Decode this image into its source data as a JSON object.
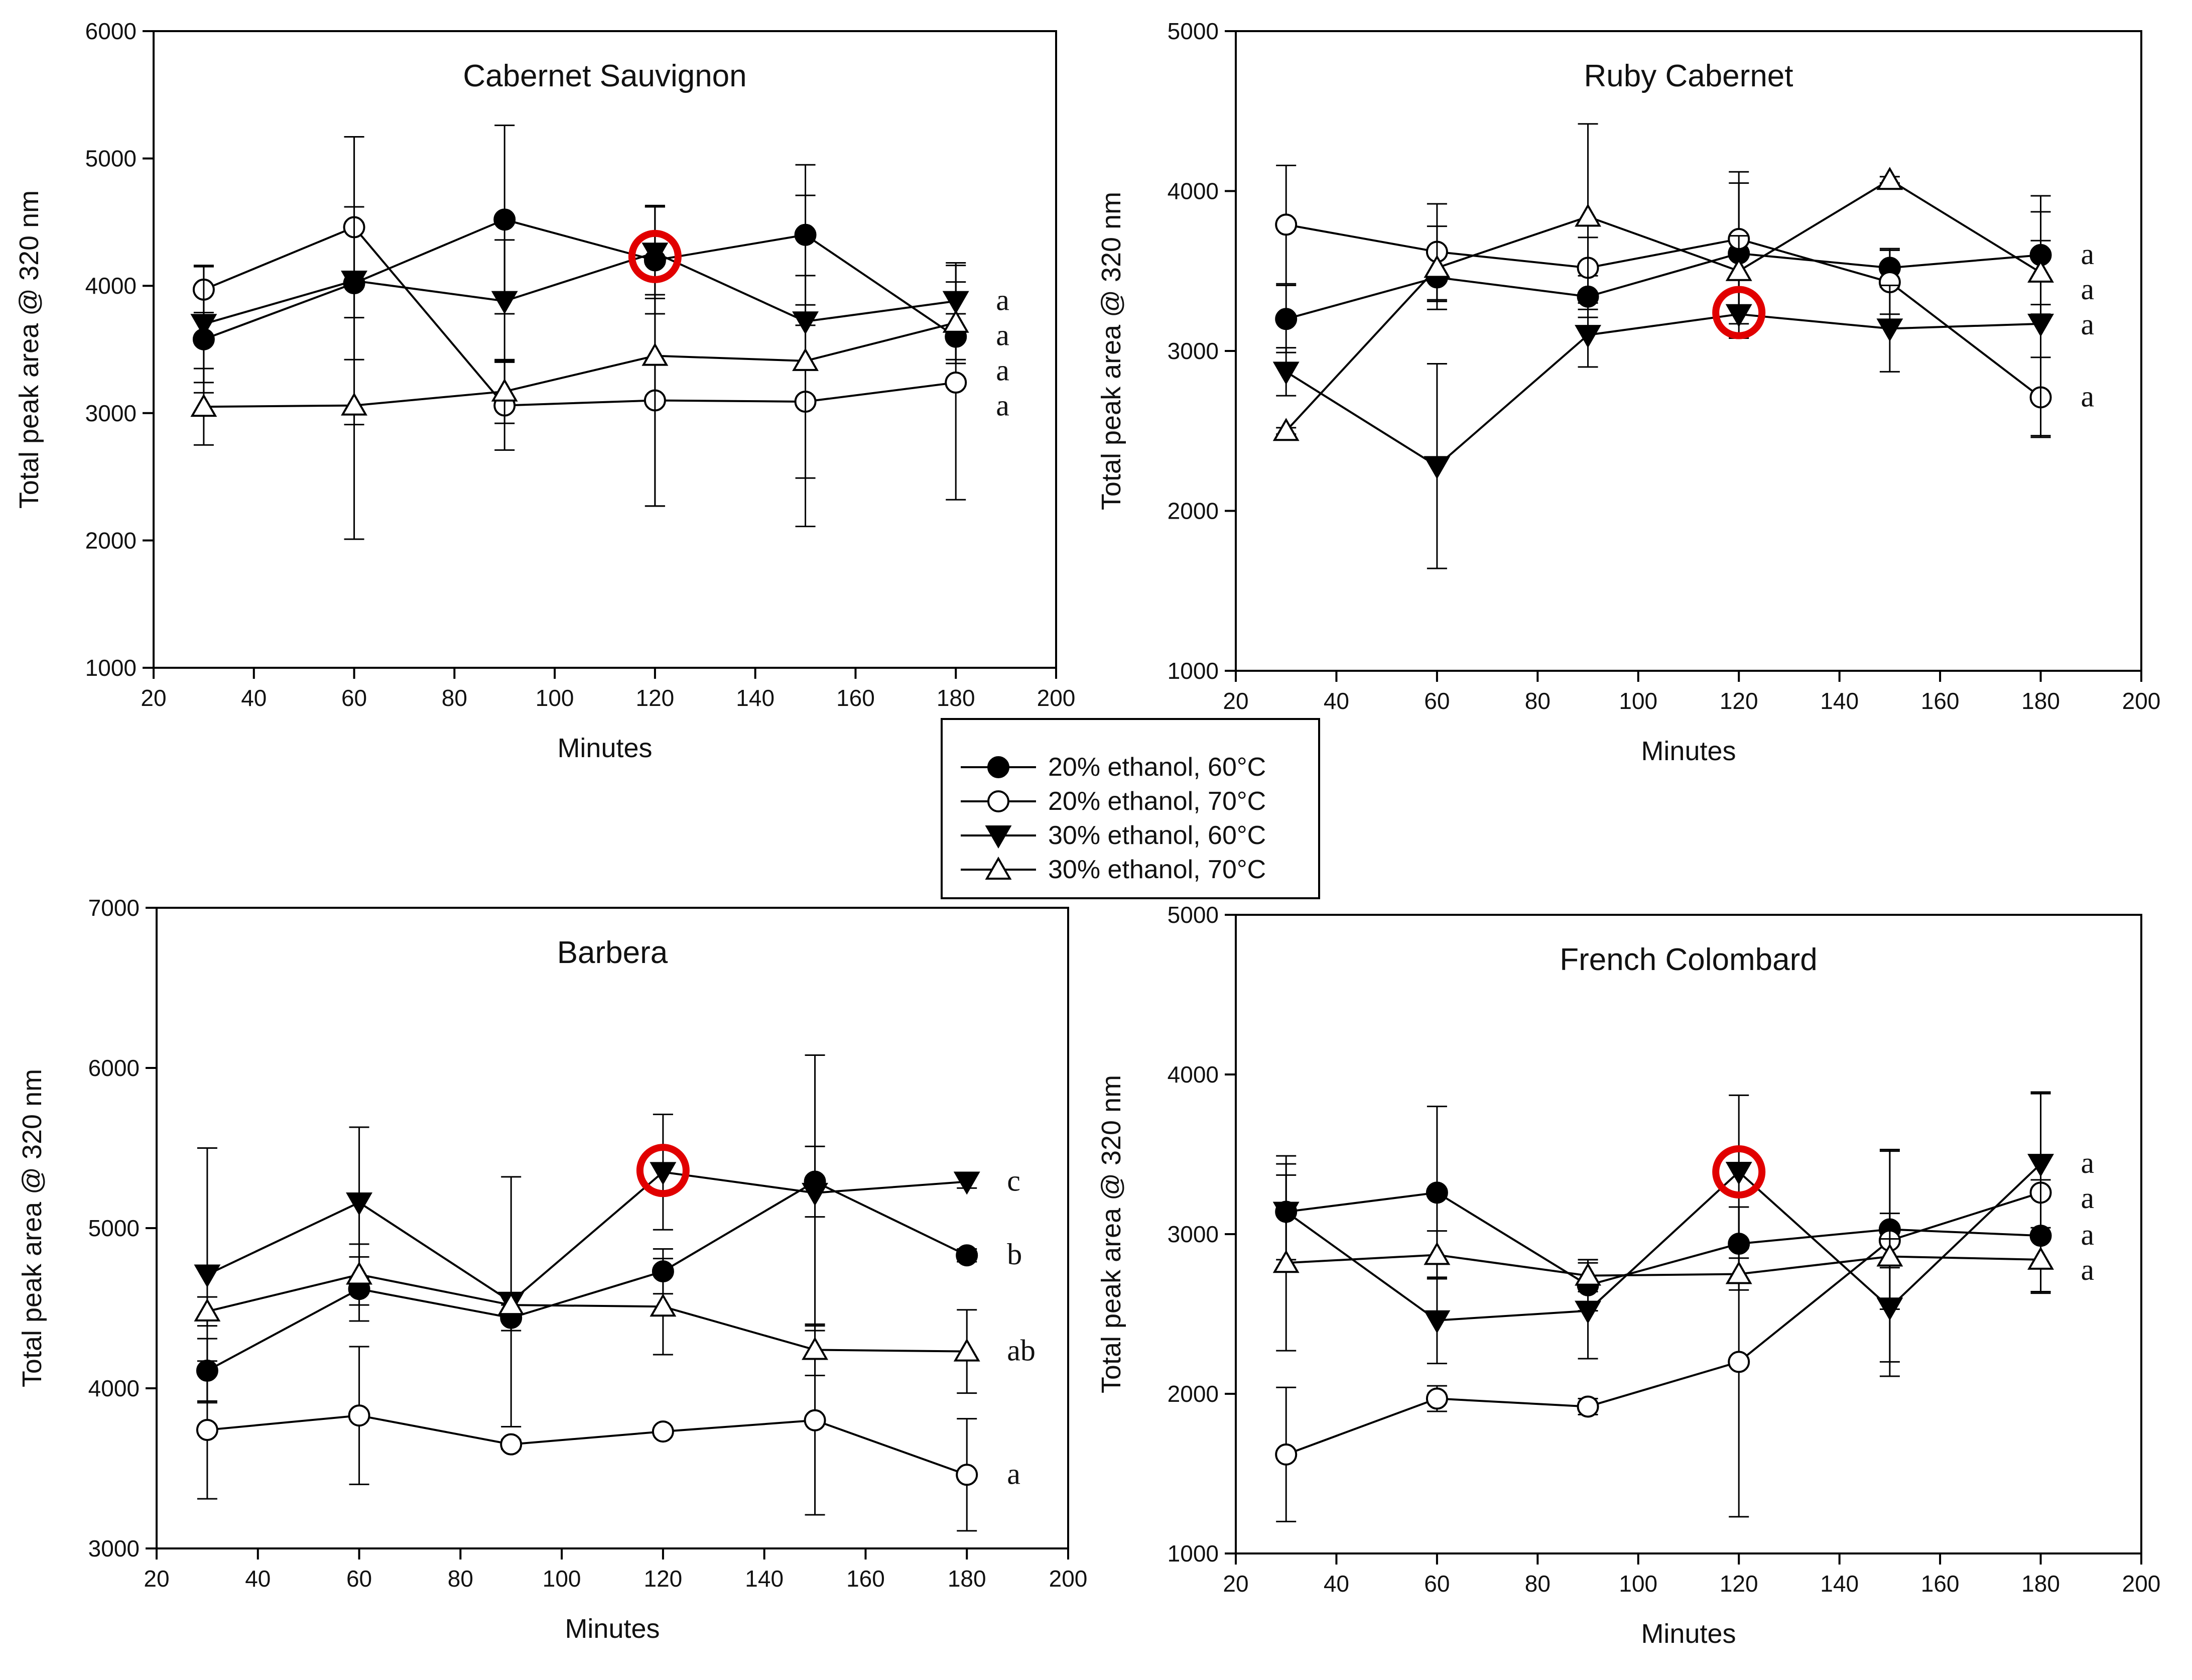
{
  "legend": [
    {
      "label": "20% ethanol, 60°C",
      "marker": "filled-circle"
    },
    {
      "label": "20% ethanol, 70°C",
      "marker": "open-circle"
    },
    {
      "label": "30% ethanol, 60°C",
      "marker": "filled-triangle-down"
    },
    {
      "label": "30% ethanol, 70°C",
      "marker": "open-triangle-up"
    }
  ],
  "chart_data": [
    {
      "type": "line",
      "title": "Cabernet Sauvignon",
      "xlabel": "Minutes",
      "ylabel": "Total peak area @ 320 nm",
      "xlim": [
        20,
        200
      ],
      "ylim": [
        1000,
        6000
      ],
      "xticks": [
        20,
        40,
        60,
        80,
        100,
        120,
        140,
        160,
        180,
        200
      ],
      "yticks": [
        1000,
        2000,
        3000,
        4000,
        5000,
        6000
      ],
      "x": [
        30,
        60,
        90,
        120,
        150,
        180
      ],
      "series": [
        {
          "name": "20% ethanol, 60°C",
          "values": [
            3580,
            4020,
            4520,
            4200,
            4400,
            3600
          ],
          "errors": [
            420,
            600,
            740,
            420,
            550,
            180
          ]
        },
        {
          "name": "20% ethanol, 70°C",
          "values": [
            3970,
            4460,
            3060,
            3100,
            3090,
            3240
          ],
          "errors": [
            180,
            710,
            350,
            830,
            600,
            920
          ]
        },
        {
          "name": "30% ethanol, 60°C",
          "values": [
            3700,
            4040,
            3880,
            4260,
            3720,
            3880
          ],
          "errors": [
            460,
            1130,
            480,
            360,
            360,
            300
          ]
        },
        {
          "name": "30% ethanol, 70°C",
          "values": [
            3050,
            3060,
            3170,
            3450,
            3410,
            3710
          ],
          "errors": [
            300,
            1050,
            250,
            1180,
            1300,
            320
          ]
        }
      ],
      "significance_labels": [
        "a",
        "a",
        "a",
        "a"
      ],
      "highlight": {
        "x": 120,
        "y": 4230
      }
    },
    {
      "type": "line",
      "title": "Ruby Cabernet",
      "xlabel": "Minutes",
      "ylabel": "Total peak area @ 320 nm",
      "xlim": [
        20,
        200
      ],
      "ylim": [
        1000,
        5000
      ],
      "xticks": [
        20,
        40,
        60,
        80,
        100,
        120,
        140,
        160,
        180,
        200
      ],
      "yticks": [
        1000,
        2000,
        3000,
        4000,
        5000
      ],
      "x": [
        30,
        60,
        90,
        120,
        150,
        180
      ],
      "series": [
        {
          "name": "20% ethanol, 60°C",
          "values": [
            3200,
            3460,
            3340,
            3610,
            3520,
            3600
          ],
          "errors": [
            210,
            150,
            130,
            440,
            120,
            370
          ]
        },
        {
          "name": "20% ethanol, 70°C",
          "values": [
            3790,
            3620,
            3520,
            3700,
            3430,
            2710
          ],
          "errors": [
            370,
            300,
            190,
            420,
            200,
            250
          ]
        },
        {
          "name": "30% ethanol, 60°C",
          "values": [
            2870,
            2280,
            3100,
            3230,
            3140,
            3170
          ],
          "errors": [
            150,
            640,
            200,
            150,
            270,
            700
          ]
        },
        {
          "name": "30% ethanol, 70°C",
          "values": [
            2500,
            3520,
            3840,
            3500,
            4070,
            3490
          ],
          "errors": [
            20,
            260,
            580,
            220,
            20,
            200
          ]
        }
      ],
      "significance_labels": [
        "a",
        "a",
        "a",
        "a"
      ],
      "highlight": {
        "x": 120,
        "y": 3240
      }
    },
    {
      "type": "line",
      "title": "Barbera",
      "xlabel": "Minutes",
      "ylabel": "Total peak area @ 320 nm",
      "xlim": [
        20,
        200
      ],
      "ylim": [
        3000,
        7000
      ],
      "xticks": [
        20,
        40,
        60,
        80,
        100,
        120,
        140,
        160,
        180,
        200
      ],
      "yticks": [
        3000,
        4000,
        5000,
        6000,
        7000
      ],
      "x": [
        30,
        60,
        90,
        120,
        150,
        180
      ],
      "series": [
        {
          "name": "20% ethanol, 60°C",
          "values": [
            4110,
            4620,
            4440,
            4730,
            5290,
            4830
          ],
          "errors": [
            200,
            200,
            80,
            140,
            220,
            40
          ]
        },
        {
          "name": "20% ethanol, 70°C",
          "values": [
            3740,
            3830,
            3650,
            3730,
            3800,
            3460
          ],
          "errors": [
            430,
            430,
            30,
            20,
            590,
            350
          ]
        },
        {
          "name": "30% ethanol, 60°C",
          "values": [
            4710,
            5160,
            4540,
            5350,
            5220,
            5290
          ],
          "errors": [
            790,
            470,
            780,
            360,
            860,
            40
          ]
        },
        {
          "name": "30% ethanol, 70°C",
          "values": [
            4480,
            4710,
            4520,
            4510,
            4240,
            4230
          ],
          "errors": [
            90,
            190,
            60,
            300,
            160,
            260
          ]
        }
      ],
      "significance_labels": [
        "c",
        "b",
        "ab",
        "a"
      ],
      "highlight": {
        "x": 120,
        "y": 5360
      }
    },
    {
      "type": "line",
      "title": "French Colombard",
      "xlabel": "Minutes",
      "ylabel": "Total peak area @ 320 nm",
      "xlim": [
        20,
        200
      ],
      "ylim": [
        1000,
        5000
      ],
      "xticks": [
        20,
        40,
        60,
        80,
        100,
        120,
        140,
        160,
        180,
        200
      ],
      "yticks": [
        1000,
        2000,
        3000,
        4000,
        5000
      ],
      "x": [
        30,
        60,
        90,
        120,
        150,
        180
      ],
      "series": [
        {
          "name": "20% ethanol, 60°C",
          "values": [
            3140,
            3260,
            2680,
            2940,
            3030,
            2990
          ],
          "errors": [
            300,
            540,
            160,
            230,
            500,
            350
          ]
        },
        {
          "name": "20% ethanol, 70°C",
          "values": [
            1620,
            1970,
            1920,
            2200,
            2960,
            3260
          ],
          "errors": [
            420,
            80,
            50,
            970,
            170,
            630
          ]
        },
        {
          "name": "30% ethanol, 60°C",
          "values": [
            3140,
            2460,
            2520,
            3390,
            2540,
            3440
          ],
          "errors": [
            350,
            270,
            300,
            480,
            430,
            440
          ]
        },
        {
          "name": "30% ethanol, 70°C",
          "values": [
            2820,
            2870,
            2740,
            2750,
            2860,
            2840
          ],
          "errors": [
            550,
            150,
            100,
            100,
            660,
            200
          ]
        }
      ],
      "significance_labels": [
        "a",
        "a",
        "a",
        "a"
      ],
      "highlight": {
        "x": 120,
        "y": 3390
      }
    }
  ]
}
